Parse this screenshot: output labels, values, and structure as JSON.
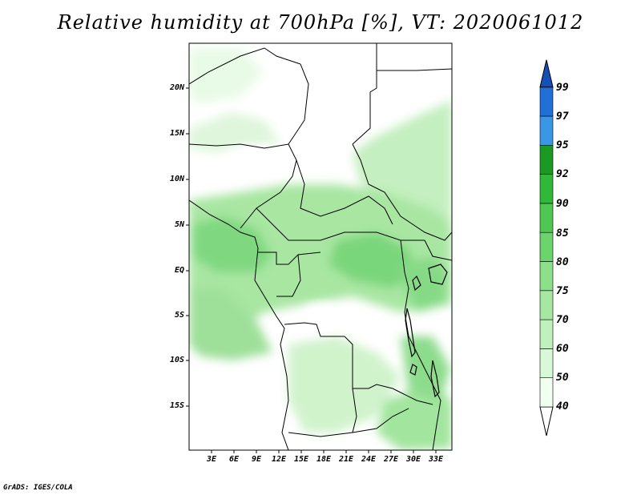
{
  "title": "Relative humidity at 700hPa [%], VT: 2020061012",
  "footer": "GrADS: IGES/COLA",
  "lat_labels": [
    "20N",
    "15N",
    "10N",
    "5N",
    "EQ",
    "5S",
    "10S",
    "15S"
  ],
  "lon_labels": [
    "3E",
    "6E",
    "9E",
    "12E",
    "15E",
    "18E",
    "21E",
    "24E",
    "27E",
    "30E",
    "33E"
  ],
  "colorbar": {
    "levels": [
      "40",
      "50",
      "60",
      "70",
      "75",
      "80",
      "85",
      "90",
      "92",
      "95",
      "97",
      "99"
    ],
    "colors": [
      "#f0fff0",
      "#d8f8d8",
      "#c0f0bc",
      "#a6e8a2",
      "#8ce08a",
      "#6cd46c",
      "#4ec850",
      "#30b838",
      "#1a9a22",
      "#3c96e6",
      "#2070d8",
      "#1450b8"
    ]
  },
  "colors": {
    "land_base": "#ffffff",
    "border": "#000000"
  }
}
